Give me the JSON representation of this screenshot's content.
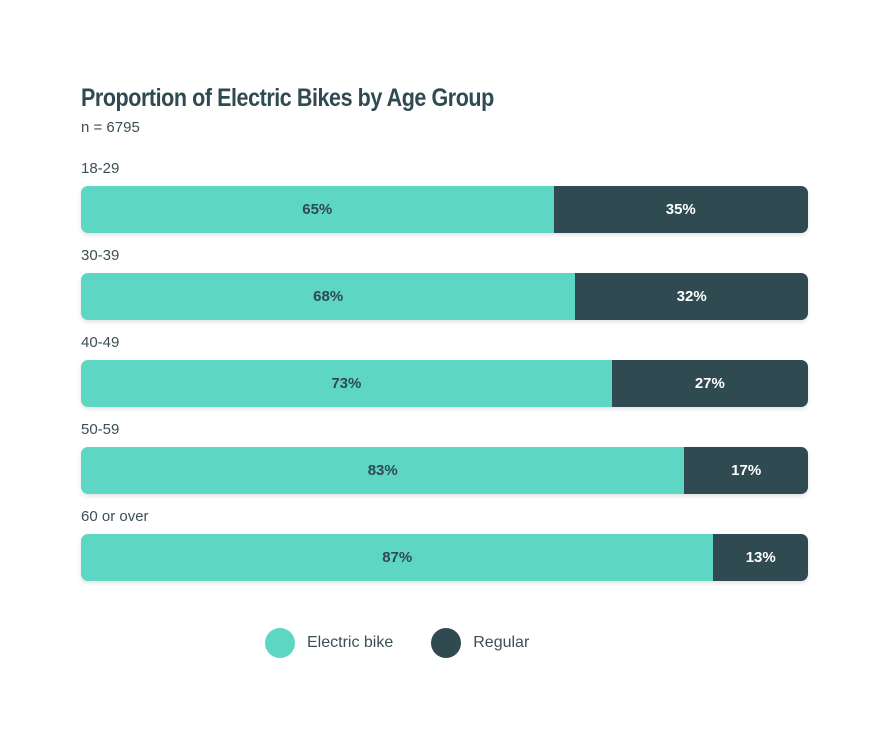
{
  "chart_data": {
    "type": "bar",
    "orientation": "horizontal",
    "stacked": true,
    "title": "Proportion of Electric Bikes by Age Group",
    "subtitle": "n = 6795",
    "categories": [
      "18-29",
      "30-39",
      "40-49",
      "50-59",
      "60 or over"
    ],
    "series": [
      {
        "name": "Electric bike",
        "values": [
          65,
          68,
          73,
          83,
          87
        ],
        "color": "#5dd6c3",
        "labels": [
          "65%",
          "68%",
          "73%",
          "83%",
          "87%"
        ]
      },
      {
        "name": "Regular",
        "values": [
          35,
          32,
          27,
          17,
          13
        ],
        "color": "#2f4a50",
        "labels": [
          "35%",
          "32%",
          "27%",
          "17%",
          "13%"
        ]
      }
    ],
    "xlim": [
      0,
      100
    ],
    "grid": false,
    "legend_position": "bottom"
  }
}
